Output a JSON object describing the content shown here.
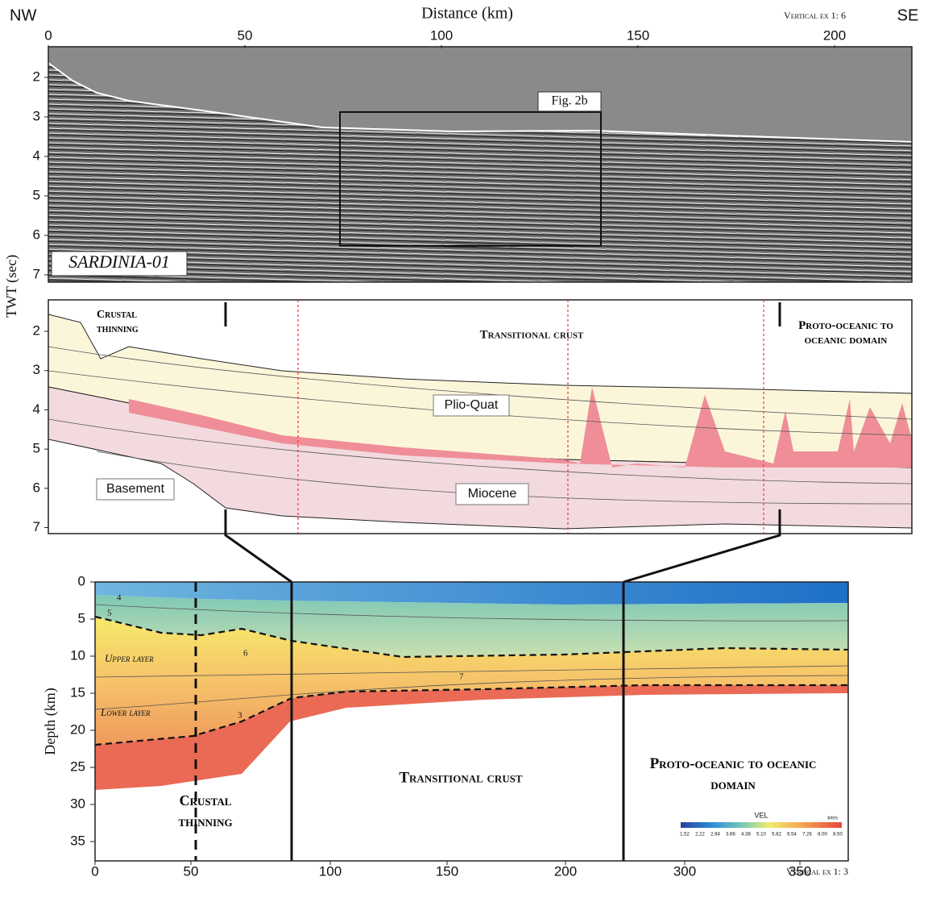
{
  "header": {
    "nw": "NW",
    "se": "SE",
    "distance_label": "Distance (km)",
    "vertical_exaggeration": "Vertical ex 1: 6"
  },
  "seismic_panel": {
    "x_ticks": [
      0,
      50,
      100,
      150,
      200
    ],
    "y_ticks": [
      2,
      3,
      4,
      5,
      6,
      7
    ],
    "y_label": "TWT (sec)",
    "box_label": "Fig. 2b",
    "line_name": "SARDINIA-01"
  },
  "interpretation_panel": {
    "y_ticks": [
      2,
      3,
      4,
      5,
      6,
      7
    ],
    "domains": [
      "Crustal thinning",
      "Transitional crust",
      "Proto-oceanic to oceanic domain"
    ],
    "units": [
      "Plio-Quat",
      "Basement",
      "Miocene"
    ]
  },
  "depth_panel": {
    "x_ticks": [
      0,
      50,
      100,
      150,
      200,
      300,
      350
    ],
    "y_ticks": [
      0,
      5,
      10,
      15,
      20,
      25,
      30,
      35
    ],
    "y_label": "Depth (km)",
    "layers": [
      "Upper layer",
      "Lower layer"
    ],
    "domains": [
      "Crustal thinning",
      "Transitional crust",
      "Proto-oceanic to oceanic domain"
    ],
    "contour_labels": [
      "4",
      "5",
      "6",
      "7",
      "3"
    ],
    "colorbar": {
      "title": "VEL",
      "unit": "km/s",
      "ticks": [
        "1.52",
        "2.22",
        "2.94",
        "3.66",
        "4.38",
        "5.10",
        "5.82",
        "6.54",
        "7.26",
        "8.00",
        "8.50"
      ]
    },
    "vertical_exaggeration": "Vertical ex 1: 3"
  }
}
